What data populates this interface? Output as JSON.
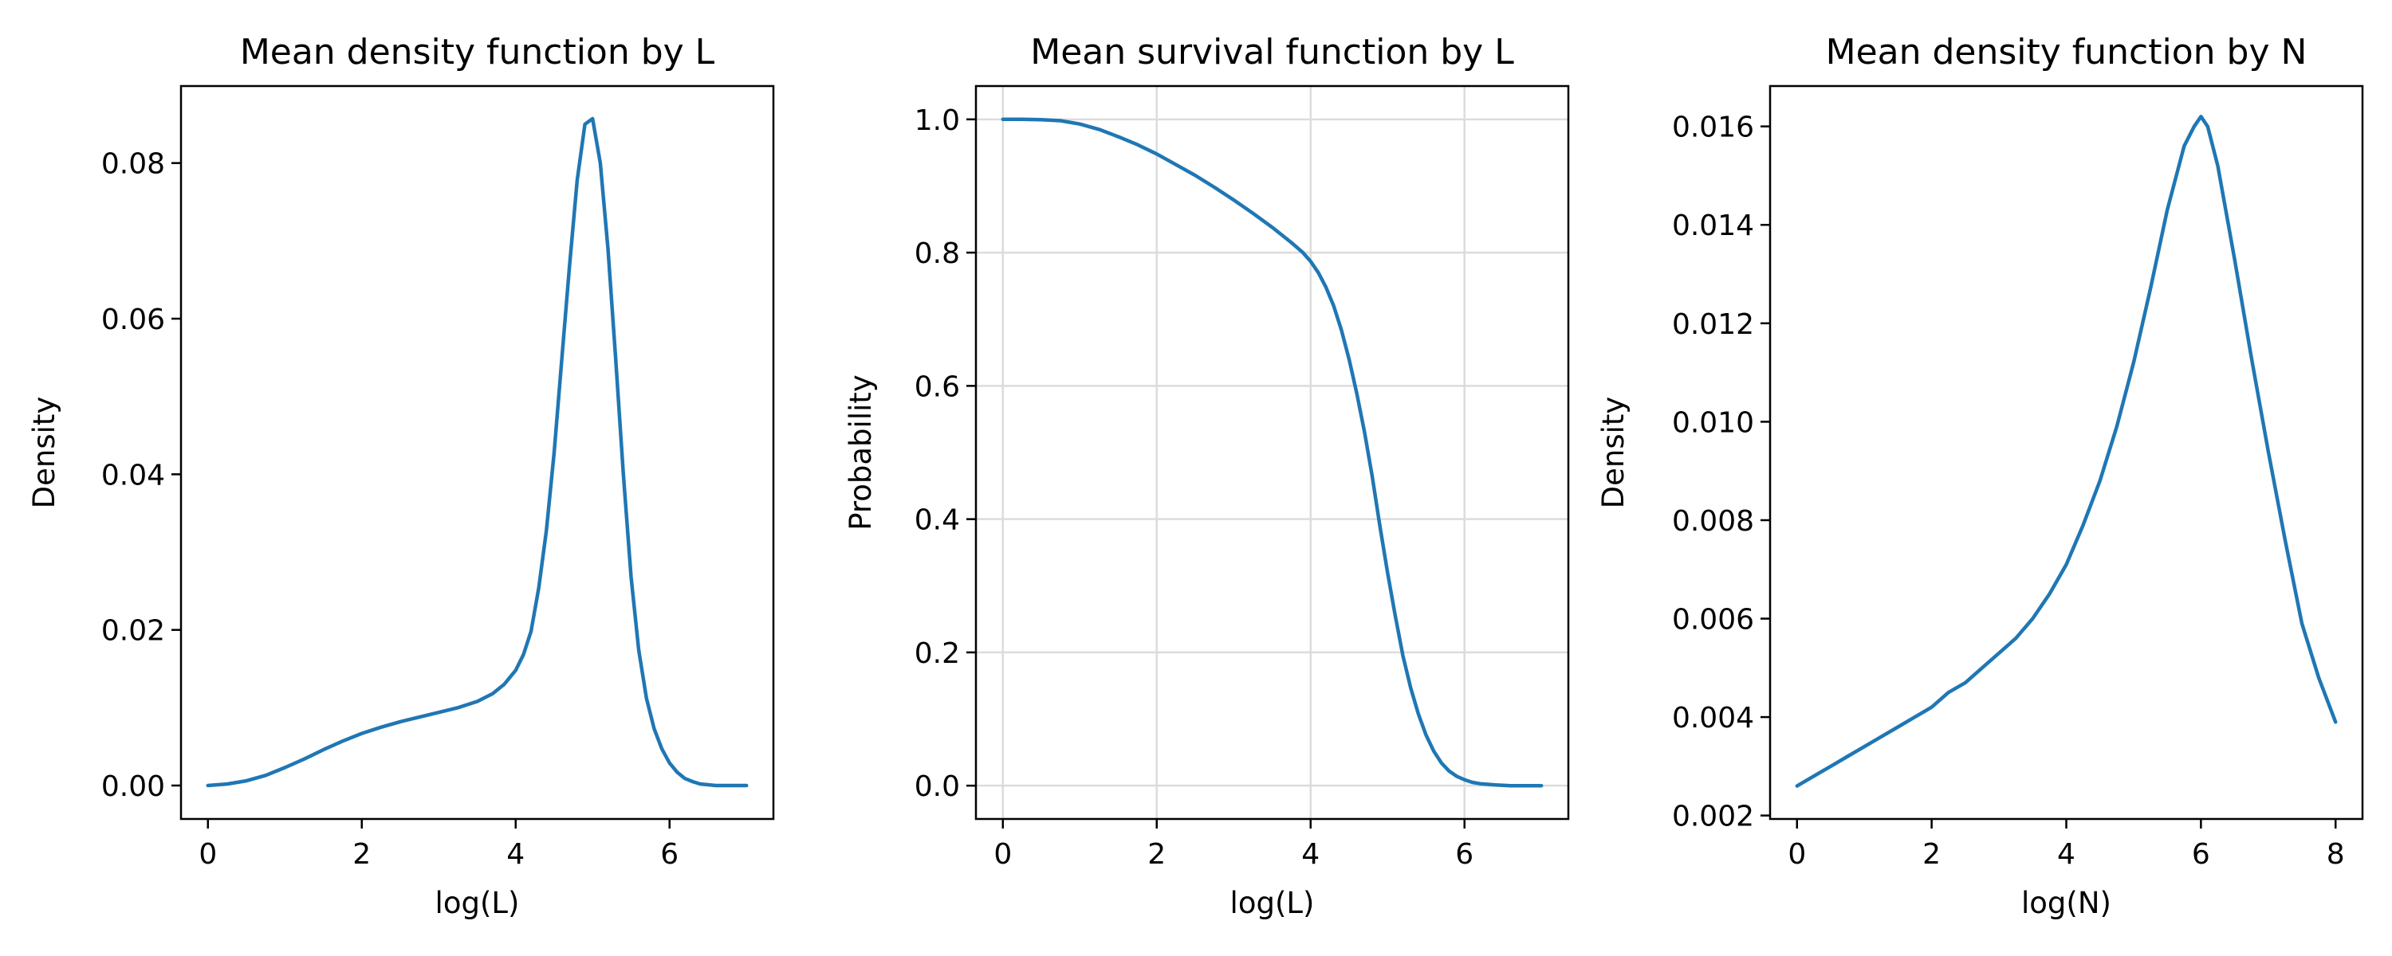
{
  "colors": {
    "line": "#1f77b4",
    "axes": "#000000",
    "grid": "#dcdcdc",
    "background": "#ffffff"
  },
  "chart_data": [
    {
      "type": "line",
      "title": "Mean density function by L",
      "xlabel": "log(L)",
      "ylabel": "Density",
      "xlim": [
        -0.35,
        7.35
      ],
      "ylim": [
        -0.0043,
        0.0899
      ],
      "xticks": [
        0,
        2,
        4,
        6
      ],
      "xtick_labels": [
        "0",
        "2",
        "4",
        "6"
      ],
      "yticks": [
        0.0,
        0.02,
        0.04,
        0.06,
        0.08
      ],
      "ytick_labels": [
        "0.00",
        "0.02",
        "0.04",
        "0.06",
        "0.08"
      ],
      "grid": false,
      "series": [
        {
          "x": [
            0,
            0.25,
            0.5,
            0.75,
            1.0,
            1.25,
            1.5,
            1.75,
            2.0,
            2.25,
            2.5,
            2.75,
            3.0,
            3.25,
            3.5,
            3.7,
            3.85,
            4.0,
            4.1,
            4.2,
            4.3,
            4.4,
            4.5,
            4.6,
            4.7,
            4.8,
            4.9,
            5.0,
            5.1,
            5.2,
            5.3,
            5.4,
            5.5,
            5.6,
            5.7,
            5.8,
            5.9,
            6.0,
            6.1,
            6.2,
            6.3,
            6.4,
            6.5,
            6.6,
            6.7,
            6.8,
            6.9,
            7.0
          ],
          "y": [
            0.0,
            0.0002,
            0.0006,
            0.0013,
            0.0023,
            0.0034,
            0.0046,
            0.0057,
            0.0067,
            0.0075,
            0.0082,
            0.0088,
            0.0094,
            0.01,
            0.0108,
            0.0118,
            0.013,
            0.0148,
            0.0168,
            0.0198,
            0.0254,
            0.0328,
            0.0428,
            0.0548,
            0.0668,
            0.0778,
            0.085,
            0.0857,
            0.08,
            0.069,
            0.0548,
            0.04,
            0.0268,
            0.0174,
            0.0112,
            0.0073,
            0.0047,
            0.0029,
            0.0017,
            0.0009,
            0.0005,
            0.0002,
            0.0001,
            0.0,
            0.0,
            0.0,
            0.0,
            0.0
          ]
        }
      ]
    },
    {
      "type": "line",
      "title": "Mean survival function by L",
      "xlabel": "log(L)",
      "ylabel": "Probability",
      "xlim": [
        -0.35,
        7.35
      ],
      "ylim": [
        -0.05,
        1.05
      ],
      "xticks": [
        0,
        2,
        4,
        6
      ],
      "xtick_labels": [
        "0",
        "2",
        "4",
        "6"
      ],
      "yticks": [
        0.0,
        0.2,
        0.4,
        0.6,
        0.8,
        1.0
      ],
      "ytick_labels": [
        "0.0",
        "0.2",
        "0.4",
        "0.6",
        "0.8",
        "1.0"
      ],
      "grid": true,
      "series": [
        {
          "x": [
            0,
            0.25,
            0.5,
            0.75,
            1.0,
            1.25,
            1.5,
            1.75,
            2.0,
            2.25,
            2.5,
            2.75,
            3.0,
            3.25,
            3.5,
            3.75,
            3.9,
            4.0,
            4.1,
            4.2,
            4.3,
            4.4,
            4.5,
            4.6,
            4.7,
            4.8,
            4.9,
            5.0,
            5.1,
            5.2,
            5.3,
            5.4,
            5.5,
            5.6,
            5.7,
            5.8,
            5.9,
            6.0,
            6.1,
            6.2,
            6.4,
            6.6,
            6.8,
            7.0
          ],
          "y": [
            1.0,
            1.0,
            0.9995,
            0.998,
            0.993,
            0.985,
            0.974,
            0.962,
            0.948,
            0.932,
            0.916,
            0.898,
            0.879,
            0.859,
            0.838,
            0.815,
            0.8,
            0.787,
            0.77,
            0.748,
            0.72,
            0.684,
            0.64,
            0.589,
            0.531,
            0.465,
            0.39,
            0.32,
            0.255,
            0.195,
            0.147,
            0.108,
            0.076,
            0.052,
            0.034,
            0.022,
            0.014,
            0.009,
            0.005,
            0.003,
            0.001,
            0.0,
            0.0,
            0.0
          ]
        }
      ]
    },
    {
      "type": "line",
      "title": "Mean density function by N",
      "xlabel": "log(N)",
      "ylabel": "Density",
      "xlim": [
        -0.4,
        8.4
      ],
      "ylim": [
        0.00193,
        0.01682
      ],
      "xticks": [
        0,
        2,
        4,
        6,
        8
      ],
      "xtick_labels": [
        "0",
        "2",
        "4",
        "6",
        "8"
      ],
      "yticks": [
        0.002,
        0.004,
        0.006,
        0.008,
        0.01,
        0.012,
        0.014,
        0.016
      ],
      "ytick_labels": [
        "0.002",
        "0.004",
        "0.006",
        "0.008",
        "0.010",
        "0.012",
        "0.014",
        "0.016"
      ],
      "grid": false,
      "series": [
        {
          "x": [
            0,
            0.25,
            0.5,
            0.75,
            1.0,
            1.25,
            1.5,
            1.75,
            2.0,
            2.25,
            2.5,
            2.75,
            3.0,
            3.25,
            3.5,
            3.75,
            4.0,
            4.25,
            4.5,
            4.75,
            5.0,
            5.25,
            5.5,
            5.75,
            5.9,
            6.0,
            6.1,
            6.25,
            6.5,
            6.75,
            7.0,
            7.25,
            7.5,
            7.75,
            8.0
          ],
          "y": [
            0.0026,
            0.0028,
            0.003,
            0.0032,
            0.0034,
            0.0036,
            0.0038,
            0.004,
            0.0042,
            0.0045,
            0.0047,
            0.005,
            0.0053,
            0.0056,
            0.006,
            0.0065,
            0.0071,
            0.0079,
            0.0088,
            0.0099,
            0.0112,
            0.0127,
            0.0143,
            0.0156,
            0.016,
            0.0162,
            0.016,
            0.0152,
            0.0133,
            0.0113,
            0.0094,
            0.0076,
            0.0059,
            0.0048,
            0.0039
          ]
        }
      ]
    }
  ]
}
